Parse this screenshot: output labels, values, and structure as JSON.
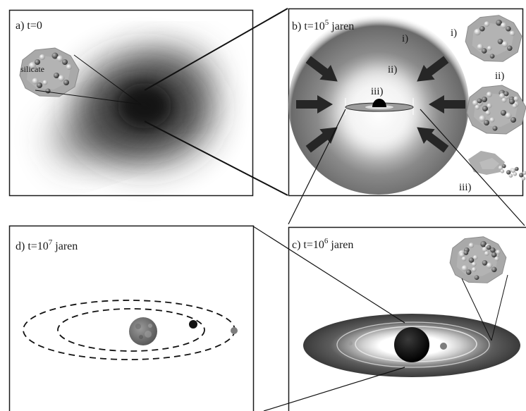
{
  "panels": {
    "a": {
      "prefix": "a) t=0"
    },
    "b": {
      "prefix": "b) t=10",
      "sup": "5",
      "suffix": " jaren",
      "zone_i": "i)",
      "zone_ii": "ii)",
      "zone_iii": "iii)",
      "thumb_i": "i)",
      "thumb_ii": "ii)",
      "thumb_iii": "iii)"
    },
    "c": {
      "prefix": "c) t=10",
      "sup": "6",
      "suffix": " jaren"
    },
    "d": {
      "prefix": "d) t=10",
      "sup": "7",
      "suffix": " jaren"
    }
  },
  "labels": {
    "silicate": "silicate"
  },
  "colors": {
    "cloud": "#1b1b1b",
    "grain": "#a8a8a8",
    "arrow": "#262626",
    "planet": "#7d7d7d"
  }
}
